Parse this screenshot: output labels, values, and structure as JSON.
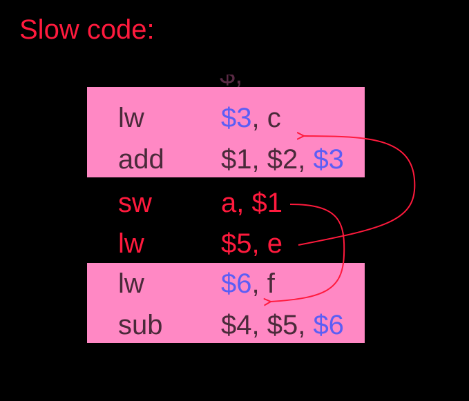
{
  "title": "Slow code:",
  "partial_row": "$,  ",
  "rows": [
    {
      "op": "lw",
      "arg_a": "$3",
      "arg_b": ", c",
      "arg_c": ""
    },
    {
      "op": "add",
      "arg_a": "$1, $2, ",
      "arg_b": "$3",
      "arg_c": ""
    },
    {
      "op": "sw",
      "arg_a": "a, $1",
      "arg_b": "",
      "arg_c": ""
    },
    {
      "op": "lw",
      "arg_a": "$5, e",
      "arg_b": "",
      "arg_c": ""
    },
    {
      "op": "lw",
      "arg_a": "$6",
      "arg_b": ", f",
      "arg_c": ""
    },
    {
      "op": "sub",
      "arg_a": "$4, $5, ",
      "arg_b": "$6",
      "arg_c": ""
    }
  ],
  "colors": {
    "background": "#000000",
    "block": "#ff88c4",
    "text": "#4a2a3a",
    "highlight_register": "#5b5ef5",
    "moved_instruction": "#ff1a3d",
    "arrow": "#ff1a3d"
  }
}
